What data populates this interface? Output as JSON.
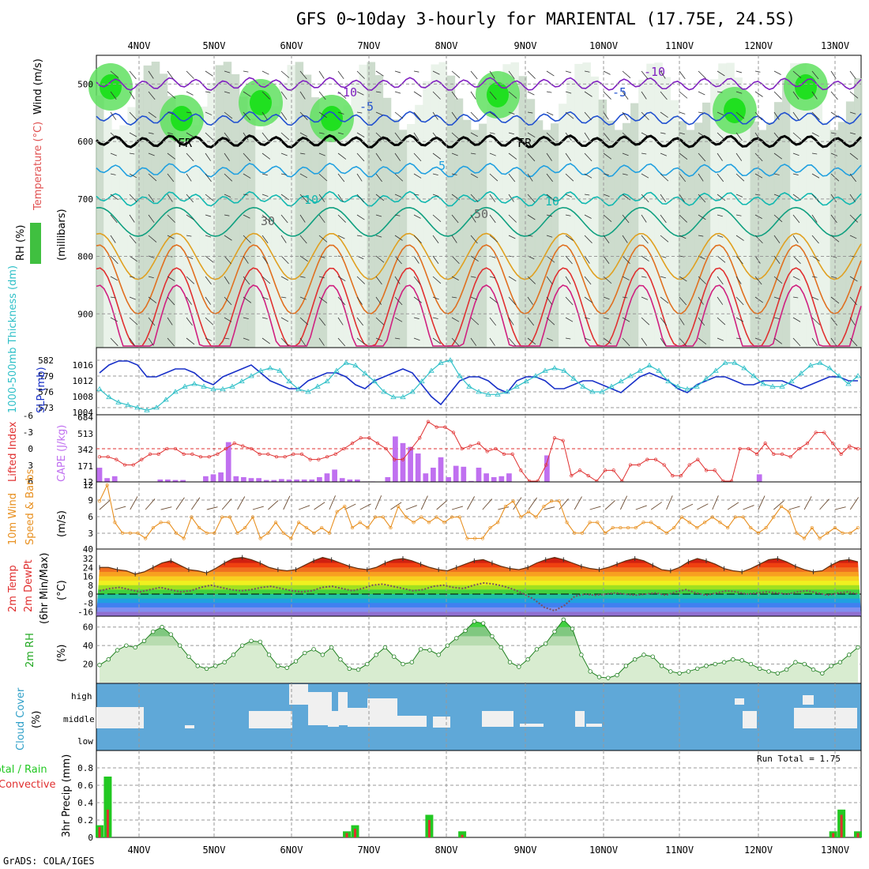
{
  "title": "GFS 0~10day 3-hourly for MARIENTAL (17.75E, 24.5S)",
  "footer": "GrADS: COLA/IGES",
  "colors": {
    "bg": "#ffffff",
    "grid": "#999999",
    "green": "#22c822",
    "red": "#e03030",
    "cyan": "#30c0c8",
    "blue": "#1830c8",
    "purple": "#c070f0",
    "orange": "#e89020",
    "cloud_bg": "#5fa8d8",
    "cloud_fill": "#f0f0f0"
  },
  "dates": [
    "4NOV",
    "5NOV",
    "6NOV",
    "7NOV",
    "8NOV",
    "9NOV",
    "10NOV",
    "11NOV",
    "12NOV",
    "13NOV"
  ],
  "chart_data": [
    {
      "type": "contour",
      "id": "upper-air",
      "labels": {
        "rh": "RH (%)",
        "temp": "Temperature (°C)",
        "wind": "Wind (m/s)",
        "pressure": "(millibars)"
      },
      "yticks": [
        500,
        600,
        700,
        800,
        900
      ],
      "contour_labels": [
        "-10",
        "-5",
        "FR",
        "5",
        "10",
        "50",
        "30"
      ],
      "ylim": [
        1000,
        450
      ]
    },
    {
      "type": "line",
      "id": "slp-thickness",
      "labels": {
        "thickness": "1000-500mb Thickness (dm)",
        "slp": "SLP (mb)"
      },
      "thickness_ticks": [
        "582",
        "579",
        "576",
        "573"
      ],
      "slp_ticks": [
        "1016",
        "1012",
        "1008",
        "1004"
      ],
      "series": [
        {
          "name": "SLP",
          "values": [
            1014,
            1016,
            1017,
            1017,
            1016,
            1013,
            1013,
            1014,
            1015,
            1015,
            1014,
            1012,
            1011,
            1013,
            1014,
            1015,
            1016,
            1014,
            1012,
            1011,
            1010,
            1010,
            1012,
            1013,
            1014,
            1014,
            1013,
            1011,
            1010,
            1012,
            1013,
            1014,
            1015,
            1014,
            1011,
            1008,
            1006,
            1009,
            1012,
            1013,
            1013,
            1012,
            1010,
            1009,
            1012,
            1013,
            1013,
            1012,
            1010,
            1010,
            1011,
            1012,
            1012,
            1011,
            1010,
            1009,
            1011,
            1013,
            1014,
            1013,
            1012,
            1010,
            1009,
            1011,
            1012,
            1013,
            1013,
            1012,
            1011,
            1011,
            1012,
            1012,
            1012,
            1011,
            1010,
            1011,
            1012,
            1013,
            1013,
            1012,
            1012
          ]
        },
        {
          "name": "Thickness",
          "values": [
            576.5,
            575,
            574,
            573.5,
            573,
            572.5,
            573,
            574.5,
            576,
            577,
            577.5,
            577,
            576.5,
            576.5,
            577,
            578,
            579,
            580,
            580.5,
            580,
            578,
            576.5,
            576,
            577,
            578,
            580,
            581.5,
            581,
            579.5,
            578,
            576,
            575,
            575,
            576,
            578,
            580,
            581.5,
            582,
            579,
            577,
            576,
            575.5,
            575.5,
            576,
            577,
            578,
            579,
            580,
            580.5,
            580,
            578.5,
            577,
            576,
            576,
            577,
            578,
            579,
            580,
            581,
            580,
            578,
            577,
            576.5,
            577,
            578.5,
            580,
            581.5,
            581.5,
            580.5,
            579,
            577.5,
            577,
            577,
            578,
            579.5,
            581,
            581.5,
            580.5,
            579,
            577.5,
            579
          ]
        }
      ]
    },
    {
      "type": "bar",
      "id": "cape-li",
      "labels": {
        "li": "Lifted Index",
        "cape": "CAPE (J/kg)"
      },
      "li_ticks": [
        "-6",
        "-3",
        "0",
        "3",
        "6"
      ],
      "cape_ticks": [
        "684",
        "513",
        "342",
        "171",
        "12"
      ],
      "series": [
        {
          "name": "CAPE",
          "values": [
            150,
            40,
            60,
            0,
            0,
            0,
            0,
            0,
            25,
            25,
            20,
            20,
            0,
            0,
            60,
            80,
            100,
            420,
            60,
            50,
            40,
            40,
            20,
            20,
            30,
            25,
            25,
            25,
            25,
            50,
            90,
            130,
            40,
            25,
            25,
            5,
            5,
            0,
            50,
            480,
            410,
            370,
            300,
            90,
            150,
            260,
            50,
            170,
            160,
            10,
            150,
            90,
            50,
            60,
            90,
            0,
            0,
            0,
            0,
            280,
            0,
            0,
            0,
            0,
            0,
            0,
            0,
            0,
            0,
            0,
            0,
            0,
            0,
            0,
            0,
            0,
            0,
            0,
            0,
            0,
            0,
            0,
            0,
            0,
            0,
            0,
            0,
            80,
            0,
            0,
            0,
            0,
            0,
            0,
            0,
            0,
            0,
            0,
            0,
            0,
            0
          ]
        },
        {
          "name": "LI",
          "values": [
            1.5,
            1.5,
            2,
            3,
            3,
            2,
            1,
            1,
            0,
            0,
            1,
            1,
            1.5,
            1.5,
            1,
            0,
            -1,
            -0.5,
            0,
            1,
            1,
            1.5,
            1.5,
            1,
            1,
            2,
            2,
            1.5,
            1,
            0,
            -1,
            -2,
            -2,
            -1,
            0,
            2,
            2,
            0,
            -2,
            -5,
            -4,
            -4,
            -3,
            0,
            -0.5,
            -1,
            0.5,
            0,
            1,
            1,
            4,
            6,
            6,
            3,
            -2,
            -1.5,
            5,
            4,
            5,
            6,
            4,
            4,
            6,
            3,
            3,
            2,
            2,
            3,
            5,
            5,
            3,
            2,
            4,
            4,
            6,
            6,
            0,
            0,
            1,
            -1,
            1,
            1,
            1.5,
            0,
            -1,
            -3,
            -3,
            -1,
            1,
            -0.5,
            0
          ]
        }
      ]
    },
    {
      "type": "line",
      "id": "wind10m",
      "labels": {
        "main": "10m Wind",
        "sub": "Speed & Barbs",
        "unit": "(m/s)"
      },
      "yticks": [
        "12",
        "9",
        "6",
        "3",
        "40"
      ],
      "series": [
        {
          "name": "Speed",
          "values": [
            9,
            12,
            5,
            3,
            3,
            3,
            2,
            4,
            5,
            5,
            3,
            2,
            6,
            4,
            3,
            3,
            6,
            6,
            3,
            4,
            6,
            2,
            3,
            5,
            3,
            2,
            5,
            4,
            3,
            4,
            3,
            7,
            8,
            4,
            5,
            4,
            6,
            6,
            4,
            8,
            6,
            5,
            6,
            5,
            6,
            5,
            6,
            6,
            2,
            2,
            2,
            4,
            5,
            8,
            9,
            6,
            7,
            6,
            8,
            9,
            9,
            5,
            3,
            3,
            5,
            5,
            3,
            4,
            4,
            4,
            4,
            5,
            5,
            4,
            3,
            4,
            6,
            5,
            4,
            5,
            6,
            5,
            4,
            6,
            6,
            4,
            3,
            4,
            6,
            8,
            7,
            3,
            2,
            4,
            2,
            3,
            4,
            3,
            3,
            4
          ]
        }
      ]
    },
    {
      "type": "area",
      "id": "temp2m",
      "labels": {
        "main": "2m Temp",
        "sub1": "2m DewPt",
        "sub2": "(6hr Min/Max)",
        "unit": "(°C)"
      },
      "yticks": [
        "32",
        "24",
        "16",
        "8",
        "0",
        "-8",
        "-16"
      ],
      "series": [
        {
          "name": "Temp",
          "values": [
            24,
            24,
            22,
            21,
            18,
            20,
            24,
            28,
            30,
            26,
            22,
            21,
            19,
            23,
            28,
            32,
            33,
            31,
            28,
            24,
            22,
            21,
            22,
            26,
            30,
            33,
            31,
            28,
            25,
            23,
            22,
            24,
            28,
            31,
            32,
            30,
            27,
            24,
            22,
            21,
            24,
            27,
            30,
            31,
            28,
            25,
            23,
            22,
            24,
            28,
            31,
            33,
            31,
            28,
            25,
            23,
            22,
            24,
            27,
            30,
            32,
            30,
            26,
            22,
            21,
            24,
            29,
            32,
            30,
            27,
            23,
            21,
            20,
            23,
            27,
            31,
            32,
            29,
            25,
            22,
            20,
            21,
            26,
            30,
            31,
            29
          ]
        },
        {
          "name": "DewPt",
          "values": [
            3,
            5,
            6,
            4,
            2,
            4,
            6,
            4,
            2,
            3,
            6,
            8,
            6,
            4,
            3,
            4,
            6,
            7,
            5,
            3,
            2,
            3,
            6,
            7,
            5,
            3,
            5,
            8,
            9,
            7,
            5,
            3,
            4,
            7,
            8,
            6,
            5,
            8,
            10,
            9,
            7,
            4,
            0,
            -5,
            -12,
            -15,
            -10,
            -2,
            0,
            -1,
            0,
            1,
            0,
            -1,
            0,
            1,
            -1,
            2,
            4,
            1,
            -1,
            1,
            3,
            2,
            0,
            1,
            2,
            1,
            0,
            2,
            3,
            1,
            -1,
            1,
            2,
            0
          ]
        }
      ]
    },
    {
      "type": "area",
      "id": "rh2m",
      "labels": {
        "main": "2m RH",
        "unit": "(%)"
      },
      "yticks": [
        "60",
        "40",
        "20"
      ],
      "series": [
        {
          "name": "RH",
          "values": [
            19,
            25,
            35,
            40,
            38,
            45,
            55,
            60,
            52,
            40,
            28,
            18,
            15,
            18,
            22,
            30,
            40,
            45,
            44,
            30,
            18,
            16,
            23,
            32,
            36,
            30,
            38,
            25,
            15,
            14,
            20,
            30,
            38,
            28,
            20,
            22,
            36,
            35,
            30,
            40,
            48,
            56,
            66,
            64,
            50,
            38,
            22,
            17,
            25,
            36,
            42,
            55,
            68,
            58,
            30,
            12,
            6,
            5,
            8,
            18,
            25,
            30,
            28,
            18,
            12,
            10,
            12,
            15,
            18,
            20,
            22,
            25,
            24,
            20,
            15,
            12,
            10,
            14,
            22,
            20,
            14,
            10,
            18,
            22,
            30,
            38
          ]
        }
      ]
    },
    {
      "type": "heatmap",
      "id": "cloud",
      "labels": {
        "main": "Cloud Cover",
        "unit": "(%)",
        "high": "high",
        "middle": "middle",
        "low": "low"
      }
    },
    {
      "type": "bar",
      "id": "precip",
      "labels": {
        "total": "Total / Rain",
        "conv": "Convective",
        "axis": "3hr Precip (mm)",
        "run_total": "Run Total = 1.75"
      },
      "yticks": [
        "0.8",
        "0.6",
        "0.4",
        "0.2",
        "0"
      ],
      "series": [
        {
          "name": "Total",
          "values": [
            0.14,
            0.7,
            0,
            0,
            0,
            0,
            0,
            0,
            0,
            0,
            0,
            0,
            0,
            0,
            0,
            0,
            0,
            0,
            0,
            0,
            0,
            0,
            0,
            0,
            0,
            0,
            0,
            0,
            0,
            0,
            0.07,
            0.14,
            0,
            0,
            0,
            0,
            0,
            0,
            0,
            0,
            0.26,
            0,
            0,
            0,
            0.07,
            0,
            0,
            0,
            0,
            0,
            0,
            0,
            0,
            0,
            0,
            0,
            0,
            0,
            0,
            0,
            0,
            0,
            0,
            0,
            0,
            0,
            0,
            0,
            0,
            0,
            0,
            0,
            0,
            0,
            0,
            0,
            0,
            0,
            0,
            0,
            0,
            0,
            0,
            0,
            0,
            0,
            0,
            0,
            0,
            0.07,
            0.32,
            0,
            0.07
          ]
        },
        {
          "name": "Convective",
          "values": [
            0.12,
            0.32,
            0,
            0,
            0,
            0,
            0,
            0,
            0,
            0,
            0,
            0,
            0,
            0,
            0,
            0,
            0,
            0,
            0,
            0,
            0,
            0,
            0,
            0,
            0,
            0,
            0,
            0,
            0,
            0,
            0.05,
            0.1,
            0,
            0,
            0,
            0,
            0,
            0,
            0,
            0,
            0.2,
            0,
            0,
            0,
            0.03,
            0,
            0,
            0,
            0,
            0,
            0,
            0,
            0,
            0,
            0,
            0,
            0,
            0,
            0,
            0,
            0,
            0,
            0,
            0,
            0,
            0,
            0,
            0,
            0,
            0,
            0,
            0,
            0,
            0,
            0,
            0,
            0,
            0,
            0,
            0,
            0,
            0,
            0,
            0,
            0,
            0,
            0,
            0,
            0,
            0.05,
            0.26,
            0,
            0.05
          ]
        }
      ]
    }
  ]
}
